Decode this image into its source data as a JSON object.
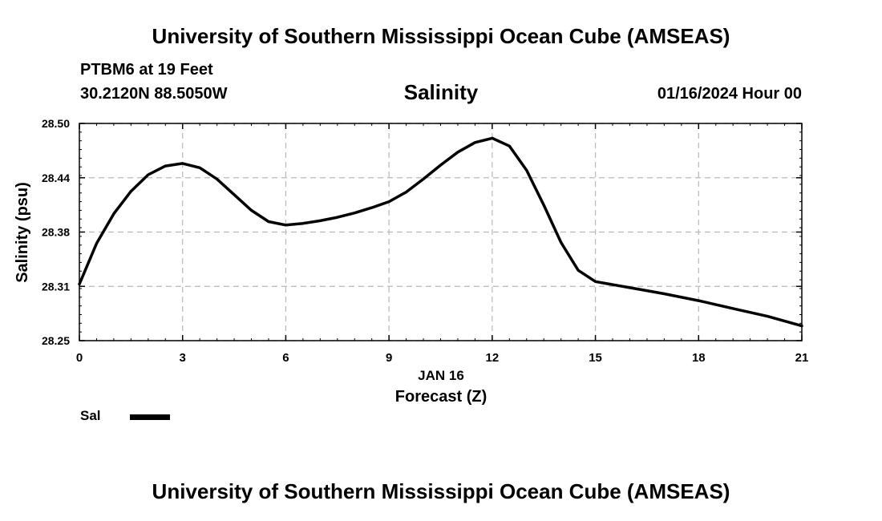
{
  "header": {
    "title": "University of Southern Mississippi Ocean Cube (AMSEAS)",
    "station": "PTBM6 at 19 Feet",
    "coordinates": "30.2120N  88.5050W",
    "subtitle": "Salinity",
    "datetime": "01/16/2024 Hour 00"
  },
  "footer": {
    "title": "University of Southern Mississippi Ocean Cube (AMSEAS)"
  },
  "legend": {
    "label": "Sal"
  },
  "chart_data": {
    "type": "line",
    "title": "Salinity",
    "xlabel": "Forecast (Z)",
    "xlabel_date": "JAN 16",
    "ylabel": "Salinity (psu)",
    "xlim": [
      0,
      21
    ],
    "ylim": [
      28.25,
      28.5
    ],
    "xticks": [
      0,
      3,
      6,
      9,
      12,
      15,
      18,
      21
    ],
    "yticks": [
      "28.25",
      "28.31",
      "28.38",
      "28.44",
      "28.50"
    ],
    "ytick_values": [
      28.25,
      28.3125,
      28.375,
      28.4375,
      28.5
    ],
    "grid": true,
    "legend_position": "bottom-left",
    "line_color": "#000000",
    "series": [
      {
        "name": "Sal",
        "x": [
          0,
          0.5,
          1,
          1.5,
          2,
          2.5,
          3,
          3.5,
          4,
          4.5,
          5,
          5.5,
          6,
          6.5,
          7,
          7.5,
          8,
          8.5,
          9,
          9.5,
          10,
          10.5,
          11,
          11.5,
          12,
          12.5,
          13,
          13.5,
          14,
          14.5,
          15,
          16,
          17,
          18,
          19,
          20,
          21
        ],
        "values": [
          28.315,
          28.362,
          28.396,
          28.422,
          28.441,
          28.451,
          28.454,
          28.449,
          28.436,
          28.418,
          28.4,
          28.387,
          28.383,
          28.385,
          28.388,
          28.392,
          28.397,
          28.403,
          28.41,
          28.421,
          28.436,
          28.452,
          28.467,
          28.478,
          28.483,
          28.474,
          28.446,
          28.406,
          28.363,
          28.331,
          28.318,
          28.311,
          28.304,
          28.296,
          28.287,
          28.278,
          28.267
        ]
      }
    ]
  }
}
